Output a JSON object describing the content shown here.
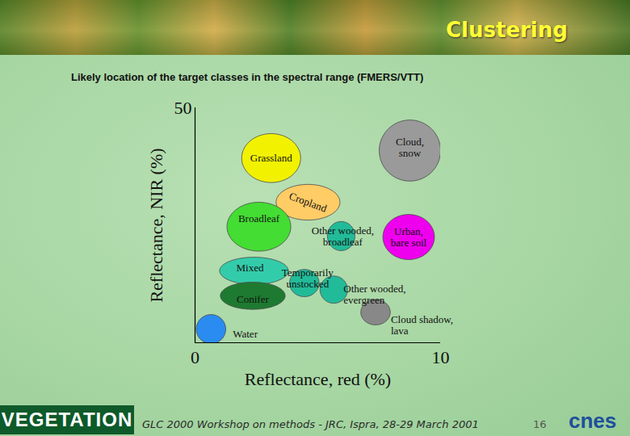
{
  "slide": {
    "header": "Clustering",
    "footer": "GLC 2000 Workshop on methods - JRC, Ispra, 28-29 March 2001",
    "page": 16,
    "logo_left": "VEGETATION",
    "logo_right": "cnes"
  },
  "chart_data": {
    "type": "scatter",
    "title": "Likely location of the target classes in the spectral range (FMERS/VTT)",
    "x_label": "Reflectance, red (%)",
    "y_label": "Reflectance, NIR (%)",
    "xlim": [
      0,
      10
    ],
    "xticks": [
      0,
      10
    ],
    "ylim": [
      0,
      50
    ],
    "yticks": [
      50
    ],
    "grid": false,
    "legend": false,
    "data_labels": false,
    "marker": "ellipse",
    "points": [
      {
        "name": "Grassland",
        "x": 3.1,
        "y": 39.3,
        "x_radius": 1.2,
        "y_radius": 5.2,
        "color": "#f2f200"
      },
      {
        "name": "Cloud,\nsnow",
        "x": 8.75,
        "y": 40.9,
        "x_radius": 1.25,
        "y_radius": 6.5,
        "color": "#9a9a9a"
      },
      {
        "name": "Cropland",
        "x": 4.6,
        "y": 29.9,
        "x_radius": 1.3,
        "y_radius": 3.8,
        "color": "#ffcc66"
      },
      {
        "name": "Broadleaf",
        "x": 2.6,
        "y": 24.7,
        "x_radius": 1.3,
        "y_radius": 5.2,
        "color": "#44dd33"
      },
      {
        "name": "Other wooded,\nbroadleaf",
        "x": 5.95,
        "y": 22.7,
        "x_radius": 0.56,
        "y_radius": 3.1,
        "color": "#22bb99"
      },
      {
        "name": "Urban,\nbare soil",
        "x": 8.7,
        "y": 22.5,
        "x_radius": 1.05,
        "y_radius": 4.8,
        "color": "#ee00ee"
      },
      {
        "name": "Mixed",
        "x": 2.4,
        "y": 15.3,
        "x_radius": 1.4,
        "y_radius": 2.9,
        "color": "#33ccaa"
      },
      {
        "name": "Temporarily\nunstocked",
        "x": 4.45,
        "y": 12.7,
        "x_radius": 0.6,
        "y_radius": 2.9,
        "color": "#22bb99"
      },
      {
        "name": "Other wooded,\nevergreen",
        "x": 5.65,
        "y": 11.3,
        "x_radius": 0.56,
        "y_radius": 2.9,
        "color": "#22bb99"
      },
      {
        "name": "Conifer",
        "x": 2.35,
        "y": 10.0,
        "x_radius": 1.32,
        "y_radius": 2.9,
        "color": "#1e7a30"
      },
      {
        "name": "Cloud shadow,\nlava",
        "x": 7.35,
        "y": 6.5,
        "x_radius": 0.6,
        "y_radius": 2.7,
        "color": "#888888"
      },
      {
        "name": "Water",
        "x": 0.65,
        "y": 2.9,
        "x_radius": 0.6,
        "y_radius": 3.1,
        "color": "#2a8cf0"
      }
    ]
  }
}
